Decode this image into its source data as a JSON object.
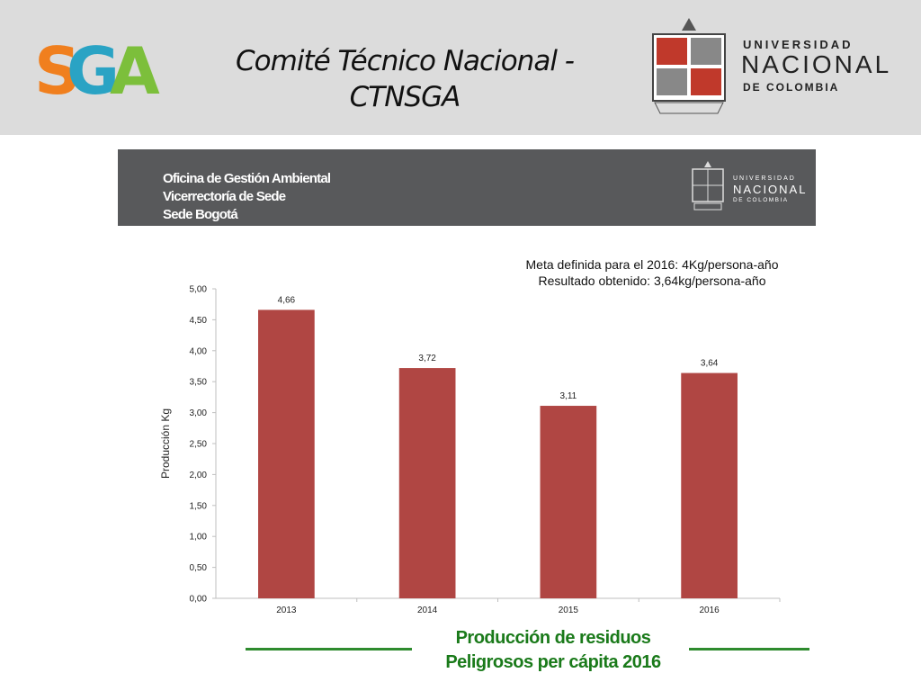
{
  "header": {
    "logo_text": "SGA",
    "title_line1": "Comité Técnico Nacional -",
    "title_line2": "CTNSGA",
    "university": {
      "line1": "UNIVERSIDAD",
      "line2": "NACIONAL",
      "line3": "DE COLOMBIA"
    }
  },
  "banner": {
    "lines": [
      "Oficina de Gestión Ambiental",
      "Vicerrectoría de Sede",
      "Sede Bogotá"
    ],
    "university": {
      "line1": "UNIVERSIDAD",
      "line2": "NACIONAL",
      "line3": "DE COLOMBIA"
    }
  },
  "annotation": {
    "line1": "Meta definida para el 2016:  4Kg/persona-año",
    "line2": "Resultado obtenido: 3,64kg/persona-año"
  },
  "caption": {
    "line1": "Producción de residuos",
    "line2": "Peligrosos per cápita 2016"
  },
  "colors": {
    "bar": "#b04643",
    "header_bg": "#dcdcdc",
    "banner_bg": "#58595b",
    "caption": "#1a7a1a",
    "underline": "#2e8b2e"
  },
  "chart_data": {
    "type": "bar",
    "categories": [
      "2013",
      "2014",
      "2015",
      "2016"
    ],
    "values": [
      4.66,
      3.72,
      3.11,
      3.64
    ],
    "value_labels": [
      "4,66",
      "3,72",
      "3,11",
      "3,64"
    ],
    "ylabel": "Producción Kg",
    "ylim": [
      0,
      5
    ],
    "yticks": [
      "0,00",
      "0,50",
      "1,00",
      "1,50",
      "2,00",
      "2,50",
      "3,00",
      "3,50",
      "4,00",
      "4,50",
      "5,00"
    ],
    "grid": false,
    "legend": "none"
  }
}
